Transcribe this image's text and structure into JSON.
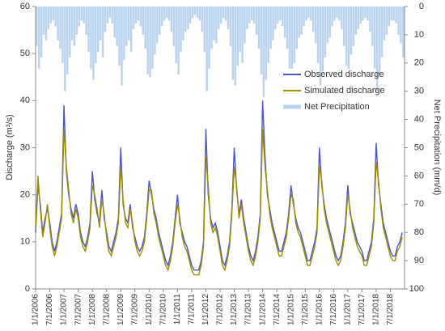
{
  "chart_data": {
    "type": "line",
    "y_label": "Discharge (m³/s)",
    "y2_label": "Net Precipitation (mm/d)",
    "x": [
      "1/1/2006",
      "2/1/2006",
      "3/1/2006",
      "4/1/2006",
      "5/1/2006",
      "6/1/2006",
      "7/1/2006",
      "8/1/2006",
      "9/1/2006",
      "10/1/2006",
      "11/1/2006",
      "12/1/2006",
      "1/1/2007",
      "2/1/2007",
      "3/1/2007",
      "4/1/2007",
      "5/1/2007",
      "6/1/2007",
      "7/1/2007",
      "8/1/2007",
      "9/1/2007",
      "10/1/2007",
      "11/1/2007",
      "12/1/2007",
      "1/1/2008",
      "2/1/2008",
      "3/1/2008",
      "4/1/2008",
      "5/1/2008",
      "6/1/2008",
      "7/1/2008",
      "8/1/2008",
      "9/1/2008",
      "10/1/2008",
      "11/1/2008",
      "12/1/2008",
      "1/1/2009",
      "2/1/2009",
      "3/1/2009",
      "4/1/2009",
      "5/1/2009",
      "6/1/2009",
      "7/1/2009",
      "8/1/2009",
      "9/1/2009",
      "10/1/2009",
      "11/1/2009",
      "12/1/2009",
      "1/1/2010",
      "2/1/2010",
      "3/1/2010",
      "4/1/2010",
      "5/1/2010",
      "6/1/2010",
      "7/1/2010",
      "8/1/2010",
      "9/1/2010",
      "10/1/2010",
      "11/1/2010",
      "12/1/2010",
      "1/1/2011",
      "2/1/2011",
      "3/1/2011",
      "4/1/2011",
      "5/1/2011",
      "6/1/2011",
      "7/1/2011",
      "8/1/2011",
      "9/1/2011",
      "10/1/2011",
      "11/1/2011",
      "12/1/2011",
      "1/1/2012",
      "2/1/2012",
      "3/1/2012",
      "4/1/2012",
      "5/1/2012",
      "6/1/2012",
      "7/1/2012",
      "8/1/2012",
      "9/1/2012",
      "10/1/2012",
      "11/1/2012",
      "12/1/2012",
      "1/1/2013",
      "2/1/2013",
      "3/1/2013",
      "4/1/2013",
      "5/1/2013",
      "6/1/2013",
      "7/1/2013",
      "8/1/2013",
      "9/1/2013",
      "10/1/2013",
      "11/1/2013",
      "12/1/2013",
      "1/1/2014",
      "2/1/2014",
      "3/1/2014",
      "4/1/2014",
      "5/1/2014",
      "6/1/2014",
      "7/1/2014",
      "8/1/2014",
      "9/1/2014",
      "10/1/2014",
      "11/1/2014",
      "12/1/2014",
      "1/1/2015",
      "2/1/2015",
      "3/1/2015",
      "4/1/2015",
      "5/1/2015",
      "6/1/2015",
      "7/1/2015",
      "8/1/2015",
      "9/1/2015",
      "10/1/2015",
      "11/1/2015",
      "12/1/2015",
      "1/1/2016",
      "2/1/2016",
      "3/1/2016",
      "4/1/2016",
      "5/1/2016",
      "6/1/2016",
      "7/1/2016",
      "8/1/2016",
      "9/1/2016",
      "10/1/2016",
      "11/1/2016",
      "12/1/2016",
      "1/1/2017",
      "2/1/2017",
      "3/1/2017",
      "4/1/2017",
      "5/1/2017",
      "6/1/2017",
      "7/1/2017",
      "8/1/2017",
      "9/1/2017",
      "10/1/2017",
      "11/1/2017",
      "12/1/2017",
      "1/1/2018",
      "2/1/2018",
      "3/1/2018",
      "4/1/2018",
      "5/1/2018",
      "6/1/2018",
      "7/1/2018",
      "8/1/2018",
      "9/1/2018",
      "10/1/2018",
      "11/1/2018",
      "12/1/2018"
    ],
    "series": [
      {
        "name": "Observed discharge",
        "color": "#4a55c8",
        "values": [
          12,
          22,
          18,
          12,
          15,
          17,
          14,
          10,
          8,
          10,
          13,
          16,
          39,
          25,
          20,
          17,
          15,
          18,
          16,
          12,
          10,
          9,
          11,
          14,
          25,
          19,
          16,
          14,
          21,
          15,
          12,
          9,
          8,
          10,
          12,
          15,
          30,
          18,
          15,
          14,
          18,
          13,
          11,
          9,
          8,
          9,
          11,
          16,
          23,
          20,
          17,
          15,
          12,
          10,
          8,
          6,
          5,
          7,
          10,
          15,
          20,
          14,
          12,
          10,
          9,
          7,
          5,
          4,
          4,
          4,
          6,
          10,
          34,
          20,
          15,
          13,
          14,
          12,
          9,
          6,
          5,
          7,
          10,
          17,
          30,
          21,
          16,
          19,
          15,
          12,
          9,
          7,
          6,
          8,
          11,
          16,
          40,
          28,
          20,
          17,
          14,
          12,
          10,
          8,
          8,
          10,
          12,
          16,
          22,
          18,
          15,
          13,
          12,
          10,
          8,
          6,
          6,
          8,
          10,
          13,
          30,
          22,
          18,
          15,
          13,
          11,
          9,
          7,
          6,
          7,
          10,
          14,
          22,
          16,
          14,
          12,
          10,
          9,
          8,
          6,
          6,
          8,
          10,
          15,
          31,
          22,
          18,
          14,
          12,
          10,
          8,
          7,
          7,
          9,
          10,
          12
        ]
      },
      {
        "name": "Simulated discharge",
        "color": "#a08c00",
        "values": [
          13,
          24,
          17,
          11,
          14,
          18,
          13,
          9,
          7,
          9,
          12,
          15,
          34,
          26,
          21,
          16,
          14,
          17,
          15,
          11,
          9,
          8,
          10,
          13,
          22,
          20,
          17,
          13,
          19,
          16,
          11,
          8,
          7,
          9,
          11,
          14,
          26,
          19,
          14,
          13,
          17,
          14,
          10,
          8,
          7,
          8,
          10,
          15,
          21,
          21,
          16,
          14,
          11,
          9,
          7,
          5,
          4,
          6,
          9,
          14,
          18,
          15,
          11,
          9,
          8,
          6,
          4,
          3,
          3,
          3,
          5,
          9,
          28,
          22,
          14,
          12,
          13,
          11,
          8,
          5,
          4,
          6,
          9,
          16,
          26,
          22,
          15,
          18,
          14,
          11,
          8,
          6,
          5,
          7,
          10,
          15,
          34,
          26,
          21,
          16,
          13,
          11,
          9,
          7,
          7,
          9,
          11,
          15,
          20,
          19,
          14,
          12,
          11,
          9,
          7,
          5,
          5,
          7,
          9,
          12,
          26,
          23,
          17,
          14,
          12,
          10,
          8,
          6,
          5,
          6,
          9,
          13,
          20,
          17,
          13,
          11,
          9,
          8,
          7,
          5,
          5,
          7,
          9,
          14,
          27,
          23,
          17,
          13,
          11,
          9,
          7,
          6,
          6,
          8,
          9,
          11
        ]
      },
      {
        "name": "Net Precipitation",
        "color": "#b9d3ee",
        "axis": "y2",
        "values": [
          14,
          22,
          18,
          10,
          12,
          8,
          6,
          5,
          7,
          12,
          15,
          20,
          30,
          24,
          18,
          12,
          14,
          10,
          7,
          5,
          6,
          10,
          16,
          22,
          26,
          20,
          16,
          12,
          18,
          9,
          6,
          4,
          6,
          11,
          14,
          21,
          28,
          19,
          14,
          12,
          16,
          8,
          6,
          5,
          7,
          10,
          15,
          24,
          25,
          22,
          17,
          13,
          10,
          7,
          5,
          4,
          5,
          9,
          14,
          20,
          24,
          16,
          12,
          9,
          8,
          6,
          4,
          3,
          4,
          5,
          9,
          16,
          30,
          22,
          15,
          12,
          13,
          8,
          6,
          4,
          5,
          8,
          14,
          26,
          28,
          21,
          16,
          20,
          13,
          8,
          6,
          5,
          6,
          10,
          15,
          24,
          32,
          26,
          20,
          15,
          12,
          8,
          6,
          5,
          7,
          11,
          15,
          22,
          22,
          20,
          15,
          11,
          10,
          7,
          5,
          4,
          5,
          9,
          13,
          20,
          28,
          23,
          18,
          13,
          11,
          7,
          5,
          4,
          5,
          8,
          14,
          21,
          22,
          17,
          14,
          10,
          8,
          6,
          5,
          4,
          5,
          9,
          14,
          22,
          30,
          24,
          18,
          12,
          10,
          7,
          5,
          5,
          6,
          10,
          13,
          18
        ]
      }
    ],
    "xlim": [
      "1/1/2006",
      "1/1/2019"
    ],
    "xticks": [
      "1/1/2006",
      "7/1/2006",
      "1/1/2007",
      "7/1/2007",
      "1/1/2008",
      "7/1/2008",
      "1/1/2009",
      "7/1/2009",
      "1/1/2010",
      "7/1/2010",
      "1/1/2011",
      "7/1/2011",
      "1/1/2012",
      "7/1/2012",
      "1/1/2013",
      "7/1/2013",
      "1/1/2014",
      "7/1/2014",
      "1/1/2015",
      "7/1/2015",
      "1/1/2016",
      "7/1/2016",
      "1/1/2017",
      "7/1/2017",
      "1/1/2018",
      "7/1/2018"
    ],
    "ylim": [
      0,
      60
    ],
    "yticks": [
      0,
      10,
      20,
      30,
      40,
      50,
      60
    ],
    "y2lim": [
      0,
      100
    ],
    "y2ticks": [
      0,
      10,
      20,
      30,
      40,
      50,
      60,
      70,
      80,
      90,
      100
    ],
    "y2_inverted": true,
    "legend": "upper-right"
  }
}
